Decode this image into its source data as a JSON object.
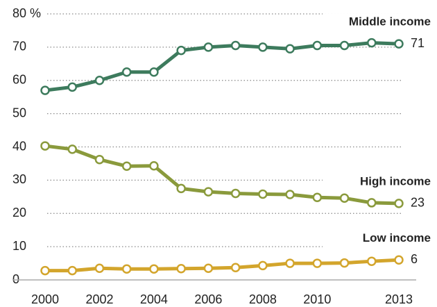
{
  "chart_data": {
    "type": "line",
    "x": [
      2000,
      2001,
      2002,
      2003,
      2004,
      2005,
      2006,
      2007,
      2008,
      2009,
      2010,
      2011,
      2012,
      2013
    ],
    "xlim": [
      2000,
      2013
    ],
    "xticks": [
      2000,
      2002,
      2004,
      2006,
      2008,
      2010,
      2013
    ],
    "ylim": [
      0,
      80
    ],
    "yticks": [
      0,
      10,
      20,
      30,
      40,
      50,
      60,
      {
        "value": 80,
        "label": "80 %"
      },
      70
    ],
    "grid": true,
    "series": [
      {
        "name": "Middle income",
        "color": "#3d7b5d",
        "values": [
          57,
          58,
          60,
          62.5,
          62.5,
          69,
          70,
          70.5,
          70,
          69.5,
          70.5,
          70.5,
          71.3,
          71
        ]
      },
      {
        "name": "High income",
        "color": "#8a9a3c",
        "values": [
          40.3,
          39.3,
          36.2,
          34.2,
          34.3,
          27.5,
          26.5,
          26,
          25.8,
          25.7,
          24.8,
          24.6,
          23.2,
          23
        ]
      },
      {
        "name": "Low income",
        "color": "#d3a52c",
        "values": [
          2.8,
          2.8,
          3.5,
          3.3,
          3.3,
          3.4,
          3.5,
          3.7,
          4.3,
          5,
          5,
          5.1,
          5.6,
          6
        ]
      }
    ]
  }
}
